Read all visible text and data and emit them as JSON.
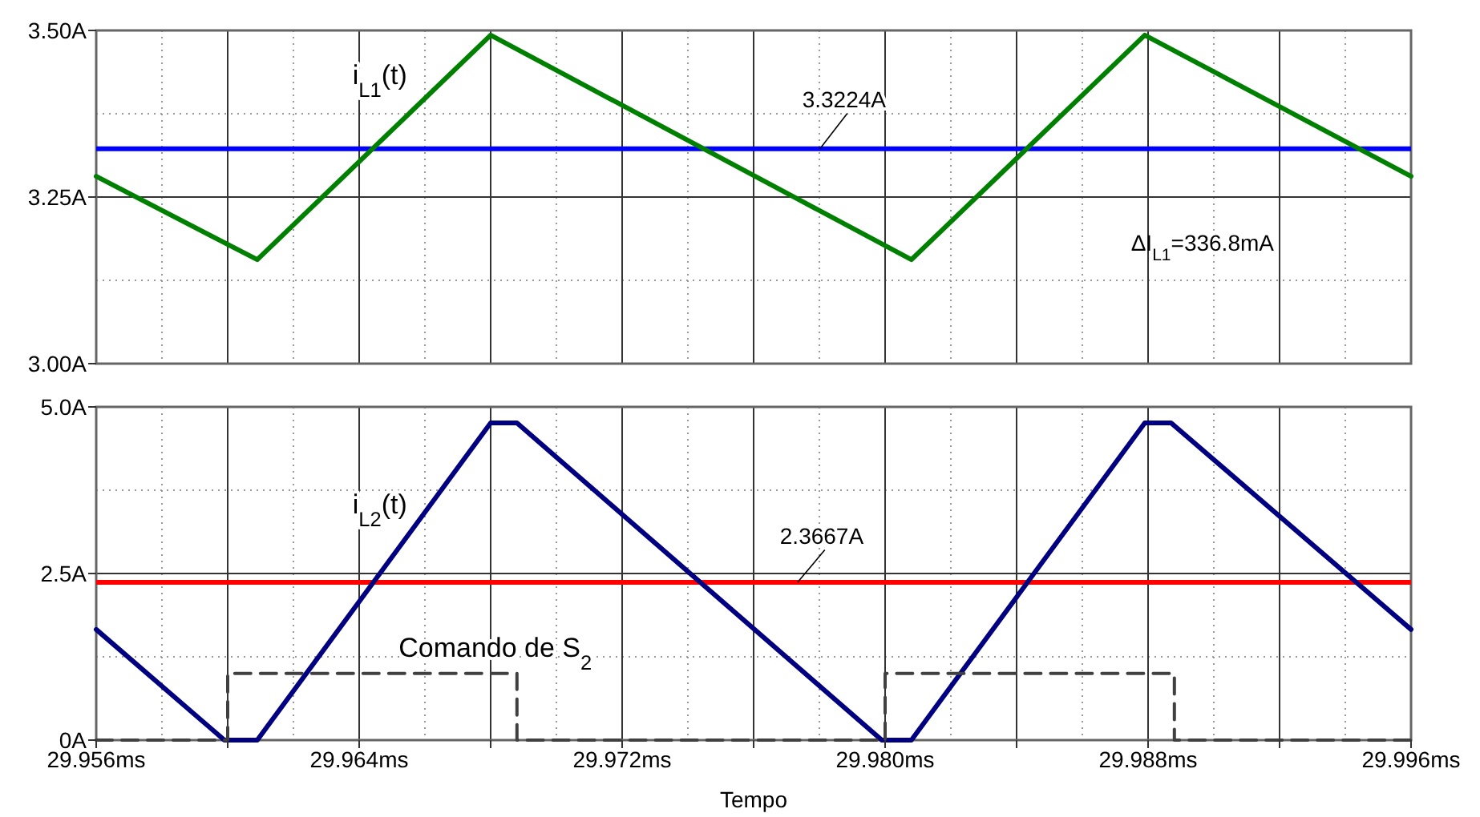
{
  "chart_data": [
    {
      "type": "line",
      "xlim": [
        29.956,
        29.996
      ],
      "xticks": [
        29.956,
        29.96,
        29.964,
        29.968,
        29.972,
        29.976,
        29.98,
        29.984,
        29.988,
        29.992,
        29.996
      ],
      "tick_labels": "y",
      "ylim": [
        3,
        3.5
      ],
      "yticks": [
        {
          "value": 3,
          "label": "3.00A"
        },
        {
          "value": 3.25,
          "label": "3.25A"
        },
        {
          "value": 3.5,
          "label": "3.50A"
        }
      ],
      "grid": true,
      "series": [
        {
          "name": "i$_{L1}$(t)",
          "color": "#008000",
          "x": [
            29.956,
            29.9609,
            29.968,
            29.9808,
            29.9879,
            29.996
          ],
          "values": [
            3.281,
            3.156,
            3.493,
            3.156,
            3.493,
            3.281
          ]
        }
      ],
      "ref_lines": [
        {
          "axis": "y",
          "value": 3.3224,
          "label": "3.3224A",
          "color": "#0000ff"
        }
      ],
      "annotations": [
        "ΔI$_{L1}$=336.8mA"
      ]
    },
    {
      "type": "line",
      "xlabel": "Tempo",
      "xlim": [
        29.956,
        29.996
      ],
      "xticks": [
        {
          "value": 29.956,
          "label": "29.956ms"
        },
        {
          "value": 29.96,
          "label": null
        },
        {
          "value": 29.964,
          "label": "29.964ms"
        },
        {
          "value": 29.968,
          "label": null
        },
        {
          "value": 29.972,
          "label": "29.972ms"
        },
        {
          "value": 29.976,
          "label": null
        },
        {
          "value": 29.98,
          "label": "29.980ms"
        },
        {
          "value": 29.984,
          "label": null
        },
        {
          "value": 29.988,
          "label": "29.988ms"
        },
        {
          "value": 29.992,
          "label": null
        },
        {
          "value": 29.996,
          "label": "29.996ms"
        }
      ],
      "ylim": [
        0,
        5
      ],
      "yticks": [
        {
          "value": 0,
          "label": "0A"
        },
        {
          "value": 2.5,
          "label": "2.5A"
        },
        {
          "value": 5,
          "label": "5.0A"
        }
      ],
      "grid": true,
      "series": [
        {
          "name": "i$_{L2}$(t)",
          "color": "#000080",
          "x": [
            29.956,
            29.9599,
            29.9609,
            29.968,
            29.9688,
            29.9799,
            29.9808,
            29.9879,
            29.9887,
            29.996
          ],
          "values": [
            1.66,
            0,
            0,
            4.76,
            4.76,
            0,
            0,
            4.76,
            4.76,
            1.66
          ]
        },
        {
          "name": "Comando de S$_{2}$",
          "type": "step",
          "line_style": "dashed",
          "color": "#404040",
          "x": [
            29.956,
            29.96,
            29.9688,
            29.98,
            29.9888,
            29.996
          ],
          "values": [
            0,
            1,
            0,
            1,
            0,
            0
          ]
        }
      ],
      "ref_lines": [
        {
          "axis": "y",
          "value": 2.3667,
          "label": "2.3667A",
          "color": "#ff0000"
        }
      ]
    }
  ]
}
